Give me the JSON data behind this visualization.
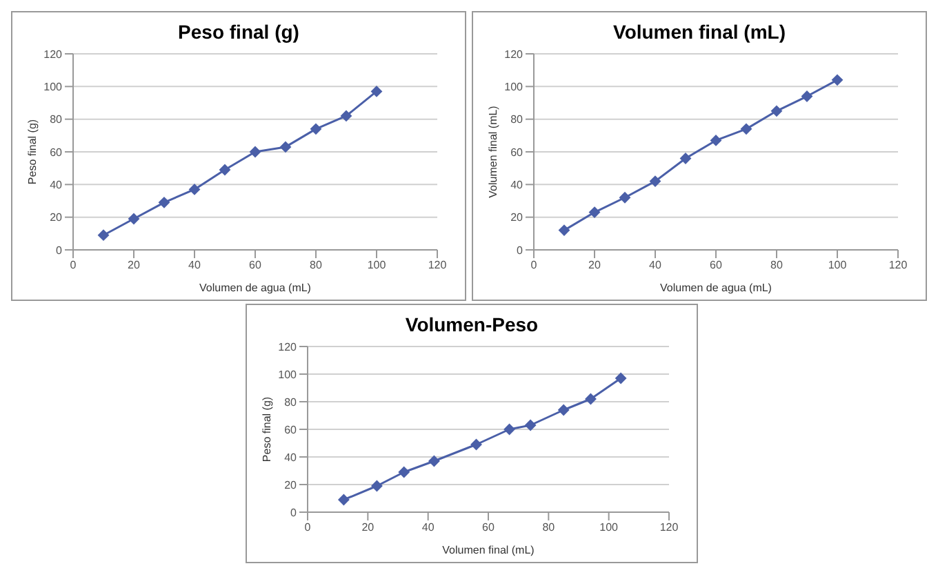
{
  "chart_data": [
    {
      "type": "line",
      "title": "Peso final (g)",
      "xlabel": "Volumen de agua (mL)",
      "ylabel": "Peso final (g)",
      "x": [
        10,
        20,
        30,
        40,
        50,
        60,
        70,
        80,
        90,
        100
      ],
      "series": [
        {
          "color": "#4a5fa8",
          "values": [
            9,
            19,
            29,
            37,
            49,
            60,
            63,
            74,
            82,
            97
          ]
        }
      ],
      "xlim": [
        0,
        120
      ],
      "xticks": [
        0,
        20,
        40,
        60,
        80,
        100,
        120
      ],
      "ylim": [
        0,
        120
      ],
      "yticks": [
        0,
        20,
        40,
        60,
        80,
        100,
        120
      ],
      "grid": "y",
      "marker": "diamond"
    },
    {
      "type": "line",
      "title": "Volumen final (mL)",
      "xlabel": "Volumen de agua (mL)",
      "ylabel": "Volumen final (mL)",
      "x": [
        10,
        20,
        30,
        40,
        50,
        60,
        70,
        80,
        90,
        100
      ],
      "series": [
        {
          "color": "#4a5fa8",
          "values": [
            12,
            23,
            32,
            42,
            56,
            67,
            74,
            85,
            94,
            104
          ]
        }
      ],
      "xlim": [
        0,
        120
      ],
      "xticks": [
        0,
        20,
        40,
        60,
        80,
        100,
        120
      ],
      "ylim": [
        0,
        120
      ],
      "yticks": [
        0,
        20,
        40,
        60,
        80,
        100,
        120
      ],
      "grid": "y",
      "marker": "diamond"
    },
    {
      "type": "line",
      "title": "Volumen-Peso",
      "xlabel": "Volumen final (mL)",
      "ylabel": "Peso final (g)",
      "x": [
        12,
        23,
        32,
        42,
        56,
        67,
        74,
        85,
        94,
        104
      ],
      "series": [
        {
          "color": "#4a5fa8",
          "values": [
            9,
            19,
            29,
            37,
            49,
            60,
            63,
            74,
            82,
            97
          ]
        }
      ],
      "xlim": [
        0,
        120
      ],
      "xticks": [
        0,
        20,
        40,
        60,
        80,
        100,
        120
      ],
      "ylim": [
        0,
        120
      ],
      "yticks": [
        0,
        20,
        40,
        60,
        80,
        100,
        120
      ],
      "grid": "y",
      "marker": "diamond"
    }
  ]
}
